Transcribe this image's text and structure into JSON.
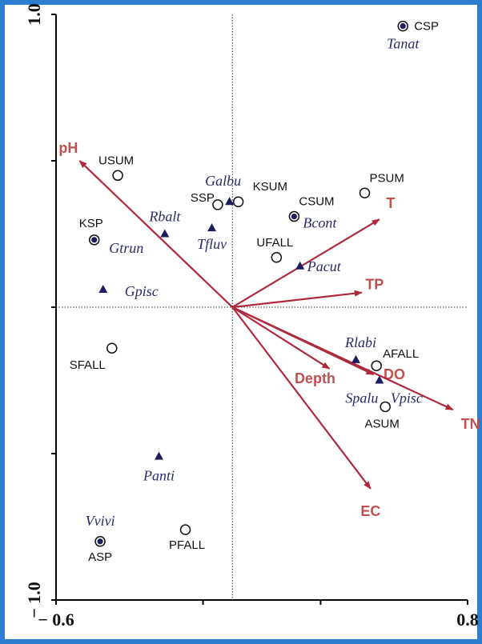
{
  "chart_data": {
    "type": "scatter",
    "title": "",
    "xlabel": "",
    "ylabel": "",
    "xlim": [
      -0.6,
      0.8
    ],
    "ylim": [
      -1.0,
      1.0
    ],
    "x_tick_labels": [
      "− 0.6",
      "0.8"
    ],
    "y_tick_labels": [
      "1.0",
      "− 1.0"
    ],
    "colors": {
      "arrow": "#b0283c",
      "env_label": "#c0504d",
      "species": "#1c1c5e",
      "species_label": "#2a2a6e"
    },
    "sites": [
      {
        "label": "CSP",
        "x": 0.58,
        "y": 0.96,
        "filled": true
      },
      {
        "label": "USUM",
        "x": -0.39,
        "y": 0.45,
        "filled": false
      },
      {
        "label": "PSUM",
        "x": 0.45,
        "y": 0.39,
        "filled": false
      },
      {
        "label": "KSUM",
        "x": 0.02,
        "y": 0.36,
        "filled": false
      },
      {
        "label": "SSP",
        "x": -0.05,
        "y": 0.35,
        "filled": false
      },
      {
        "label": "CSUM",
        "x": 0.21,
        "y": 0.31,
        "filled": true
      },
      {
        "label": "KSP",
        "x": -0.47,
        "y": 0.23,
        "filled": true
      },
      {
        "label": "UFALL",
        "x": 0.15,
        "y": 0.17,
        "filled": false
      },
      {
        "label": "SFALL",
        "x": -0.41,
        "y": -0.14,
        "filled": false
      },
      {
        "label": "AFALL",
        "x": 0.49,
        "y": -0.2,
        "filled": false
      },
      {
        "label": "ASUM",
        "x": 0.52,
        "y": -0.34,
        "filled": false
      },
      {
        "label": "PFALL",
        "x": -0.16,
        "y": -0.76,
        "filled": false
      },
      {
        "label": "ASP",
        "x": -0.45,
        "y": -0.8,
        "filled": true
      }
    ],
    "species": [
      {
        "label": "Tanat",
        "x": 0.58,
        "y": 0.96
      },
      {
        "label": "Galbu",
        "x": -0.01,
        "y": 0.36
      },
      {
        "label": "Bcont",
        "x": 0.21,
        "y": 0.31
      },
      {
        "label": "Rbalt",
        "x": -0.23,
        "y": 0.25
      },
      {
        "label": "Tfluv",
        "x": -0.07,
        "y": 0.27
      },
      {
        "label": "Gtrun",
        "x": -0.47,
        "y": 0.23
      },
      {
        "label": "Pacut",
        "x": 0.23,
        "y": 0.14
      },
      {
        "label": "Gpisc",
        "x": -0.44,
        "y": 0.06
      },
      {
        "label": "Rlabi",
        "x": 0.42,
        "y": -0.18
      },
      {
        "label": "Spalu",
        "x": 0.5,
        "y": -0.25
      },
      {
        "label": "Vpisc",
        "x": 0.5,
        "y": -0.25
      },
      {
        "label": "Panti",
        "x": -0.25,
        "y": -0.51
      },
      {
        "label": "Vvivi",
        "x": -0.45,
        "y": -0.8
      }
    ],
    "env_vectors": [
      {
        "label": "pH",
        "x": -0.52,
        "y": 0.5
      },
      {
        "label": "T",
        "x": 0.5,
        "y": 0.3
      },
      {
        "label": "TP",
        "x": 0.44,
        "y": 0.05
      },
      {
        "label": "Depth",
        "x": 0.33,
        "y": -0.21
      },
      {
        "label": "DO",
        "x": 0.48,
        "y": -0.23
      },
      {
        "label": "TN",
        "x": 0.75,
        "y": -0.35
      },
      {
        "label": "EC",
        "x": 0.47,
        "y": -0.62
      }
    ]
  }
}
